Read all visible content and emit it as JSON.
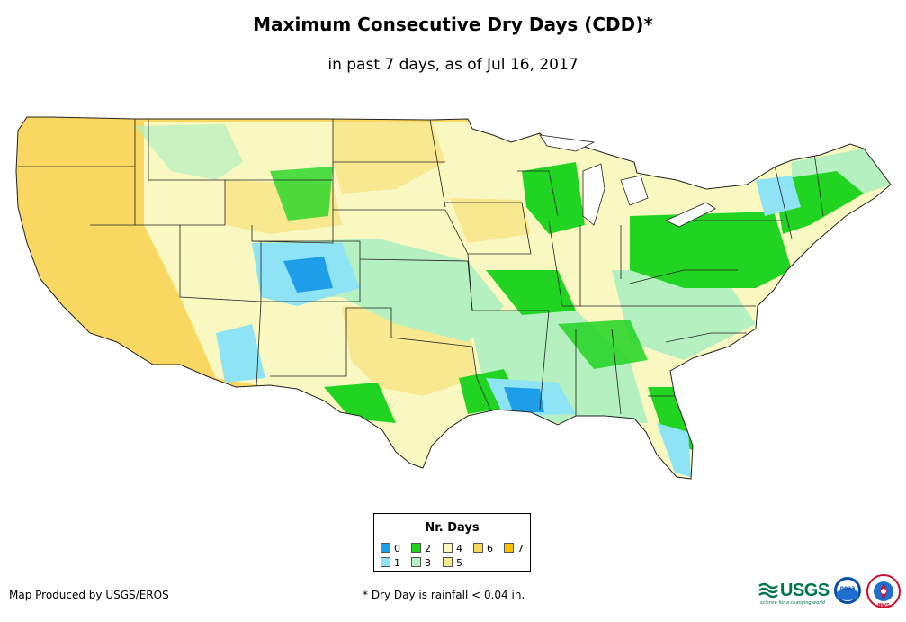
{
  "title": "Maximum Consecutive Dry Days (CDD)*",
  "subtitle": "in past 7 days, as of Jul 16, 2017",
  "legend": {
    "title": "Nr. Days",
    "items": [
      {
        "label": "0",
        "color": "#1e9ee8"
      },
      {
        "label": "1",
        "color": "#8ee3f5"
      },
      {
        "label": "2",
        "color": "#22d422"
      },
      {
        "label": "3",
        "color": "#b4f0c0"
      },
      {
        "label": "4",
        "color": "#f8f8c0"
      },
      {
        "label": "5",
        "color": "#f8e890"
      },
      {
        "label": "6",
        "color": "#f8d860"
      },
      {
        "label": "7",
        "color": "#f8c000"
      }
    ]
  },
  "credit": "Map Produced by USGS/EROS",
  "footnote": "* Dry Day is rainfall < 0.04 in.",
  "logos": {
    "usgs": "USGS",
    "usgs_tagline": "science for a changing world",
    "noaa": "noaa",
    "nws": "NWS"
  }
}
